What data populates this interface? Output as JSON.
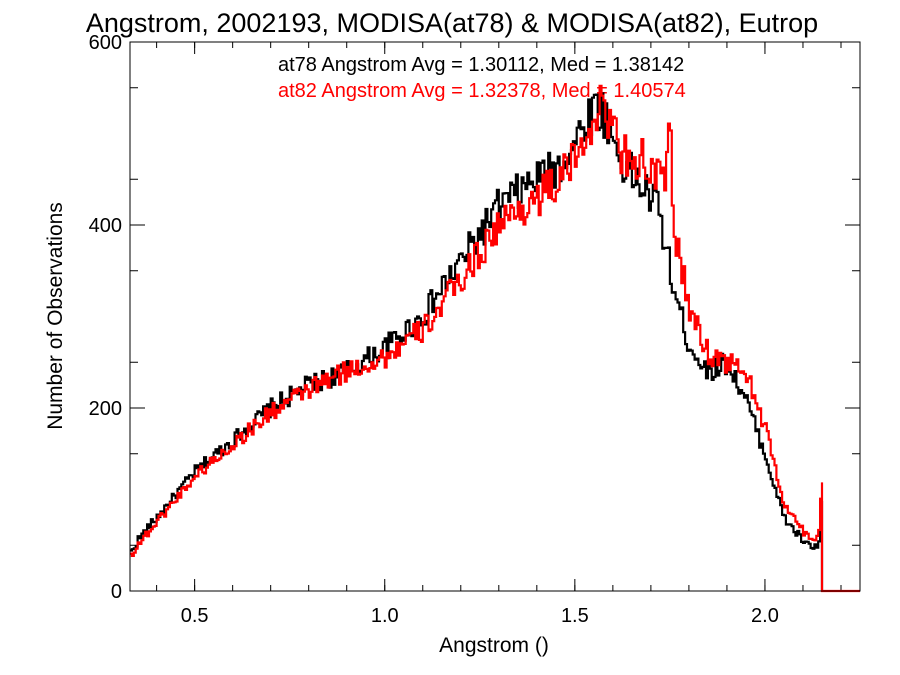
{
  "chart_data": {
    "type": "line",
    "title": "Angstrom, 2002193, MODISA(at78) & MODISA(at82), Eutrop",
    "xlabel": "Angstrom ()",
    "ylabel": "Number of Observations",
    "xlim": [
      0.33,
      2.25
    ],
    "ylim": [
      0,
      600
    ],
    "xticks": [
      "0.5",
      "1.0",
      "1.5",
      "2.0"
    ],
    "yticks": [
      "0",
      "200",
      "400",
      "600"
    ],
    "grid": false,
    "legend_position": "top-right",
    "annotations": [
      {
        "text": "at78 Angstrom Avg = 1.30112, Med = 1.38142",
        "color": "#000000"
      },
      {
        "text": "at82 Angstrom Avg = 1.32378, Med = 1.40574",
        "color": "#ff0000"
      }
    ],
    "series": [
      {
        "color": "#000000",
        "anchors_x": [
          0.33,
          0.35,
          0.4,
          0.5,
          0.6,
          0.7,
          0.8,
          0.9,
          1.0,
          1.1,
          1.2,
          1.3,
          1.4,
          1.45,
          1.5,
          1.55,
          1.58,
          1.62,
          1.68,
          1.72,
          1.76,
          1.8,
          1.85,
          1.9,
          1.95,
          2.0,
          2.05,
          2.1,
          2.14,
          2.15
        ],
        "anchors_y": [
          40,
          55,
          80,
          130,
          165,
          200,
          225,
          240,
          265,
          300,
          360,
          420,
          450,
          460,
          490,
          530,
          520,
          470,
          440,
          420,
          330,
          270,
          240,
          250,
          210,
          150,
          80,
          55,
          45,
          95
        ]
      },
      {
        "color": "#ff0000",
        "anchors_x": [
          0.33,
          0.35,
          0.4,
          0.5,
          0.6,
          0.7,
          0.8,
          0.9,
          1.0,
          1.1,
          1.2,
          1.3,
          1.4,
          1.45,
          1.5,
          1.55,
          1.58,
          1.62,
          1.68,
          1.72,
          1.74,
          1.75,
          1.76,
          1.8,
          1.85,
          1.9,
          1.95,
          2.0,
          2.05,
          2.1,
          2.14,
          2.15
        ],
        "anchors_y": [
          38,
          50,
          75,
          125,
          160,
          195,
          220,
          240,
          255,
          285,
          340,
          400,
          430,
          445,
          470,
          520,
          530,
          480,
          470,
          450,
          440,
          530,
          400,
          310,
          260,
          250,
          240,
          180,
          95,
          65,
          55,
          120
        ]
      }
    ]
  }
}
